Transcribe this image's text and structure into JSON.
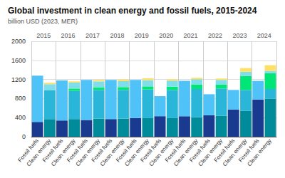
{
  "chart_data": {
    "type": "bar",
    "title": "Global investment in clean energy and fossil fuels, 2015-2024",
    "ylabel": "billion USD (2023, MER)",
    "categories": [
      "Fossil fuels",
      "Clean energy",
      "Fossil fuels",
      "Clean energy",
      "Fossil fuels",
      "Clean energy",
      "Fossil fuels",
      "Clean energy",
      "Fossil fuels",
      "Clean energy",
      "Fossil fuels",
      "Clean energy",
      "Fossil fuels",
      "Clean energy",
      "Fossil fuels",
      "Clean energy",
      "Fossil fuels",
      "Clean energy",
      "Fossil fuels",
      "Clean energy"
    ],
    "annotations": [
      "2015",
      "2016",
      "2017",
      "2018",
      "2019",
      "2020",
      "2021",
      "2022",
      "2023",
      "2024"
    ],
    "series": [
      {
        "color": "#1a3a8f",
        "values": [
          310,
          null,
          340,
          null,
          350,
          null,
          370,
          null,
          390,
          null,
          430,
          null,
          430,
          null,
          450,
          null,
          570,
          null,
          780,
          null
        ]
      },
      {
        "color": "#4fc3f7",
        "values": [
          970,
          null,
          840,
          null,
          840,
          null,
          820,
          null,
          800,
          null,
          420,
          null,
          740,
          null,
          440,
          null,
          410,
          null,
          390,
          null
        ]
      },
      {
        "color": "#008b9a",
        "values": [
          null,
          370,
          null,
          370,
          null,
          380,
          null,
          380,
          null,
          390,
          null,
          390,
          null,
          410,
          null,
          440,
          null,
          540,
          null,
          800
        ]
      },
      {
        "color": "#29b6d8",
        "values": [
          null,
          600,
          null,
          590,
          null,
          600,
          null,
          600,
          null,
          600,
          null,
          590,
          null,
          590,
          null,
          570,
          null,
          440,
          null,
          200
        ]
      },
      {
        "color": "#00e676",
        "values": [
          null,
          0,
          null,
          50,
          null,
          55,
          null,
          60,
          null,
          65,
          null,
          70,
          null,
          90,
          null,
          80,
          null,
          290,
          null,
          330
        ]
      },
      {
        "color": "#80deea",
        "values": [
          null,
          130,
          null,
          125,
          null,
          125,
          null,
          125,
          null,
          130,
          null,
          125,
          null,
          115,
          null,
          100,
          null,
          90,
          null,
          50
        ]
      },
      {
        "color": "#ffe066",
        "values": [
          null,
          30,
          null,
          25,
          null,
          30,
          null,
          35,
          null,
          40,
          null,
          30,
          null,
          30,
          null,
          30,
          null,
          80,
          null,
          120
        ]
      }
    ],
    "ylim": [
      0,
      2000
    ],
    "yticks": [
      0,
      400,
      800,
      1200,
      1600,
      2000
    ],
    "stacked": true,
    "grid": true
  }
}
